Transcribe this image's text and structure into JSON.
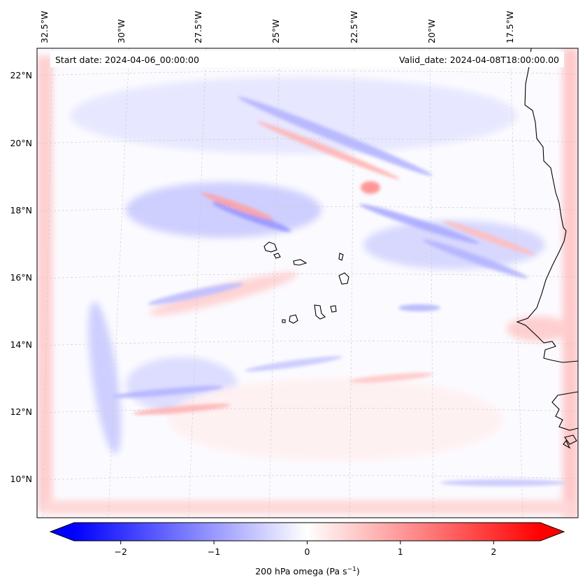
{
  "map": {
    "start_date_label": "Start date: 2024-04-06_00:00:00",
    "valid_date_label": "Valid_date: 2024-04-08T18:00:00.00",
    "lon_labels": [
      "32.5°W",
      "30°W",
      "27.5°W",
      "25°W",
      "22.5°W",
      "20°W",
      "17.5°W"
    ],
    "lat_labels": [
      "22°N",
      "20°N",
      "18°N",
      "16°N",
      "14°N",
      "12°N",
      "10°N"
    ],
    "colorbar": {
      "label": "200 hPa omega (Pa s",
      "label_sup": "−1",
      "label_end": ")",
      "ticks": [
        "−2",
        "−1",
        "0",
        "1",
        "2"
      ],
      "tick_values": [
        -2,
        -1,
        0,
        1,
        2
      ],
      "range": [
        -2.5,
        2.5
      ],
      "color_min": "#0000ff",
      "color_mid": "#ffffff",
      "color_max": "#ff0000"
    }
  }
}
